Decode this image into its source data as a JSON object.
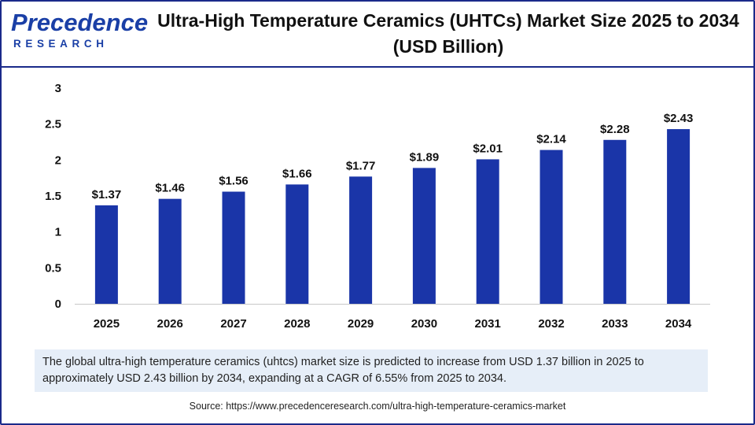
{
  "header": {
    "logo_word": "Precedence",
    "logo_sub": "RESEARCH",
    "title": "Ultra-High Temperature Ceramics (UHTCs) Market Size 2025 to 2034 (USD Billion)"
  },
  "chart_data": {
    "type": "bar",
    "categories": [
      "2025",
      "2026",
      "2027",
      "2028",
      "2029",
      "2030",
      "2031",
      "2032",
      "2033",
      "2034"
    ],
    "values": [
      1.37,
      1.46,
      1.56,
      1.66,
      1.77,
      1.89,
      2.01,
      2.14,
      2.28,
      2.43
    ],
    "data_labels": [
      "$1.37",
      "$1.46",
      "$1.56",
      "$1.66",
      "$1.77",
      "$1.89",
      "$2.01",
      "$2.14",
      "$2.28",
      "$2.43"
    ],
    "y_ticks": [
      "0",
      "0.5",
      "1",
      "1.5",
      "2",
      "2.5",
      "3"
    ],
    "ylim": [
      0,
      3
    ],
    "grid": false,
    "bar_color": "#1a35a8"
  },
  "note": "The global ultra-high temperature ceramics (uhtcs) market size is predicted to increase from USD 1.37 billion in 2025 to approximately USD 2.43 billion by 2034, expanding at a CAGR of 6.55% from 2025 to 2034.",
  "source": "Source: https://www.precedenceresearch.com/ultra-high-temperature-ceramics-market"
}
